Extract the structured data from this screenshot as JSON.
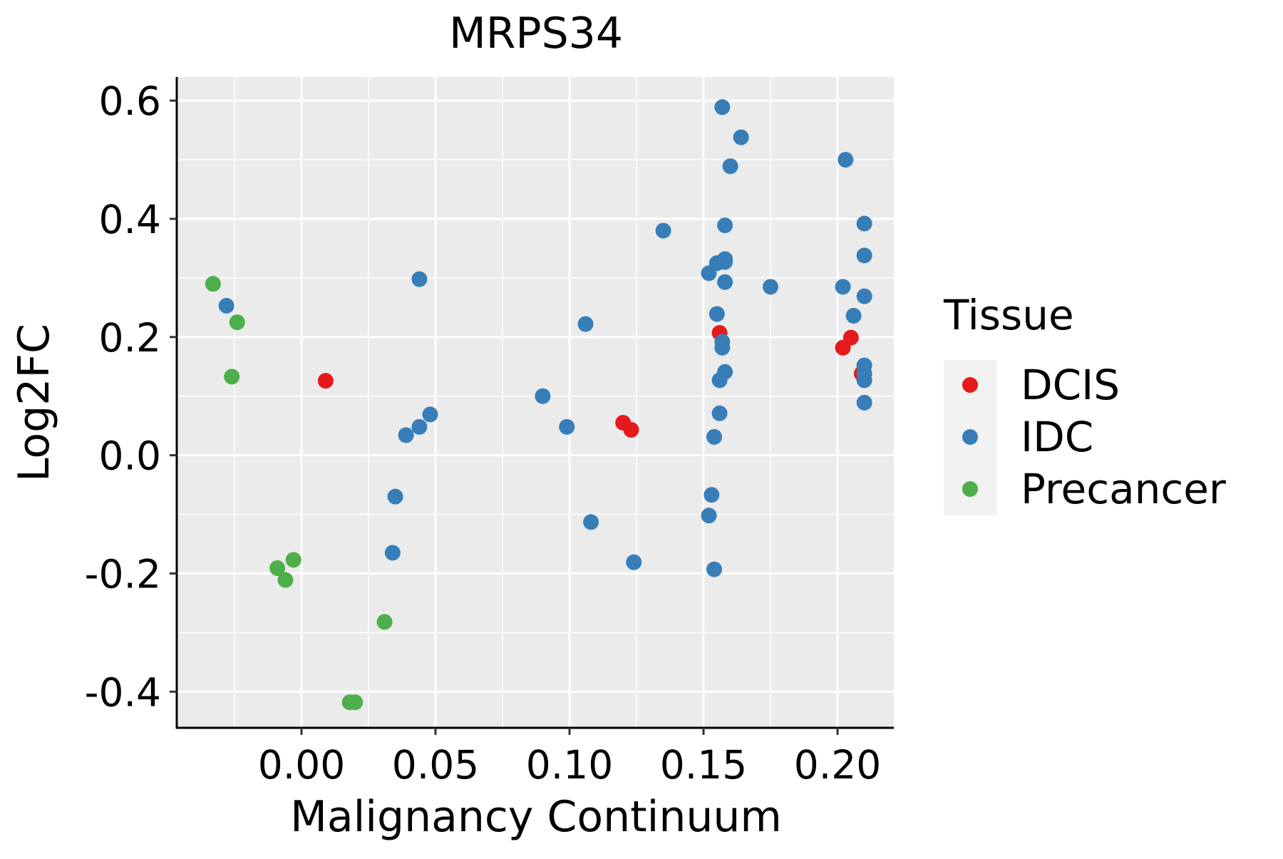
{
  "chart_data": {
    "type": "scatter",
    "title": "MRPS34",
    "xlabel": "Malignancy Continuum",
    "ylabel": "Log2FC",
    "xlim": [
      -0.046,
      0.221
    ],
    "ylim": [
      -0.46,
      0.64
    ],
    "x_ticks": [
      0.0,
      0.05,
      0.1,
      0.15,
      0.2
    ],
    "x_tick_labels": [
      "0.00",
      "0.05",
      "0.10",
      "0.15",
      "0.20"
    ],
    "y_ticks": [
      -0.4,
      -0.2,
      0.0,
      0.2,
      0.4,
      0.6
    ],
    "y_tick_labels": [
      "-0.4",
      "-0.2",
      "0.0",
      "0.2",
      "0.4",
      "0.6"
    ],
    "grid": true,
    "legend": {
      "title": "Tissue",
      "position": "right",
      "entries": [
        "DCIS",
        "IDC",
        "Precancer"
      ]
    },
    "series": [
      {
        "name": "DCIS",
        "color": "#E41A1C",
        "points": [
          [
            0.009,
            0.126
          ],
          [
            0.12,
            0.055
          ],
          [
            0.123,
            0.043
          ],
          [
            0.156,
            0.207
          ],
          [
            0.202,
            0.182
          ],
          [
            0.205,
            0.199
          ],
          [
            0.209,
            0.138
          ]
        ]
      },
      {
        "name": "IDC",
        "color": "#377EB8",
        "points": [
          [
            -0.028,
            0.253
          ],
          [
            0.034,
            -0.165
          ],
          [
            0.035,
            -0.07
          ],
          [
            0.039,
            0.034
          ],
          [
            0.044,
            0.048
          ],
          [
            0.044,
            0.298
          ],
          [
            0.048,
            0.069
          ],
          [
            0.09,
            0.1
          ],
          [
            0.099,
            0.048
          ],
          [
            0.106,
            0.222
          ],
          [
            0.108,
            -0.113
          ],
          [
            0.124,
            -0.181
          ],
          [
            0.135,
            0.38
          ],
          [
            0.152,
            -0.102
          ],
          [
            0.152,
            0.308
          ],
          [
            0.153,
            -0.067
          ],
          [
            0.154,
            -0.193
          ],
          [
            0.154,
            0.031
          ],
          [
            0.155,
            0.239
          ],
          [
            0.155,
            0.325
          ],
          [
            0.156,
            0.071
          ],
          [
            0.156,
            0.127
          ],
          [
            0.157,
            0.182
          ],
          [
            0.157,
            0.192
          ],
          [
            0.157,
            0.589
          ],
          [
            0.158,
            0.141
          ],
          [
            0.158,
            0.293
          ],
          [
            0.158,
            0.327
          ],
          [
            0.158,
            0.332
          ],
          [
            0.158,
            0.389
          ],
          [
            0.16,
            0.489
          ],
          [
            0.164,
            0.538
          ],
          [
            0.175,
            0.285
          ],
          [
            0.202,
            0.285
          ],
          [
            0.203,
            0.5
          ],
          [
            0.206,
            0.236
          ],
          [
            0.21,
            0.089
          ],
          [
            0.21,
            0.127
          ],
          [
            0.21,
            0.138
          ],
          [
            0.21,
            0.152
          ],
          [
            0.21,
            0.269
          ],
          [
            0.21,
            0.338
          ],
          [
            0.21,
            0.392
          ]
        ]
      },
      {
        "name": "Precancer",
        "color": "#4DAF4A",
        "points": [
          [
            -0.033,
            0.29
          ],
          [
            -0.026,
            0.133
          ],
          [
            -0.024,
            0.225
          ],
          [
            -0.009,
            -0.191
          ],
          [
            -0.006,
            -0.211
          ],
          [
            -0.003,
            -0.177
          ],
          [
            0.018,
            -0.418
          ],
          [
            0.02,
            -0.418
          ],
          [
            0.031,
            -0.282
          ]
        ]
      }
    ]
  }
}
